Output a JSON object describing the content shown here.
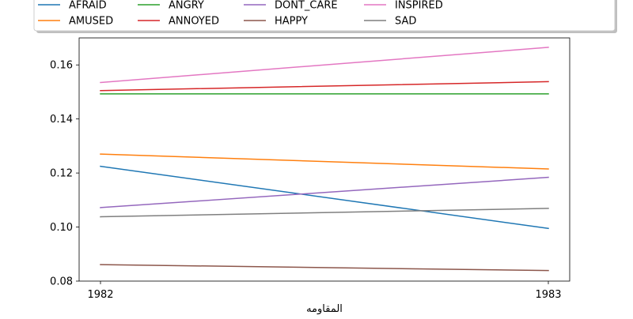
{
  "chart_data": {
    "type": "line",
    "xlabel": "المقاومه",
    "ylabel": "",
    "x": [
      1982,
      1983
    ],
    "x_tick_labels": [
      "1982",
      "1983"
    ],
    "ylim": [
      0.08,
      0.17
    ],
    "y_ticks": [
      0.08,
      0.1,
      0.12,
      0.14,
      0.16
    ],
    "y_tick_labels": [
      "0.08",
      "0.10",
      "0.12",
      "0.14",
      "0.16"
    ],
    "grid": false,
    "legend_position": "top",
    "series": [
      {
        "name": "AFRAID",
        "color": "#1f77b4",
        "values": [
          0.1225,
          0.0995
        ]
      },
      {
        "name": "AMUSED",
        "color": "#ff7f0e",
        "values": [
          0.127,
          0.1215
        ]
      },
      {
        "name": "ANGRY",
        "color": "#2ca02c",
        "values": [
          0.1493,
          0.1493
        ]
      },
      {
        "name": "ANNOYED",
        "color": "#d62728",
        "values": [
          0.1505,
          0.1538
        ]
      },
      {
        "name": "DONT_CARE",
        "color": "#9467bd",
        "values": [
          0.1072,
          0.1184
        ]
      },
      {
        "name": "HAPPY",
        "color": "#8c564b",
        "values": [
          0.0861,
          0.0839
        ]
      },
      {
        "name": "INSPIRED",
        "color": "#e377c2",
        "values": [
          0.1535,
          0.1665
        ]
      },
      {
        "name": "SAD",
        "color": "#7f7f7f",
        "values": [
          0.1038,
          0.1069
        ]
      }
    ]
  }
}
